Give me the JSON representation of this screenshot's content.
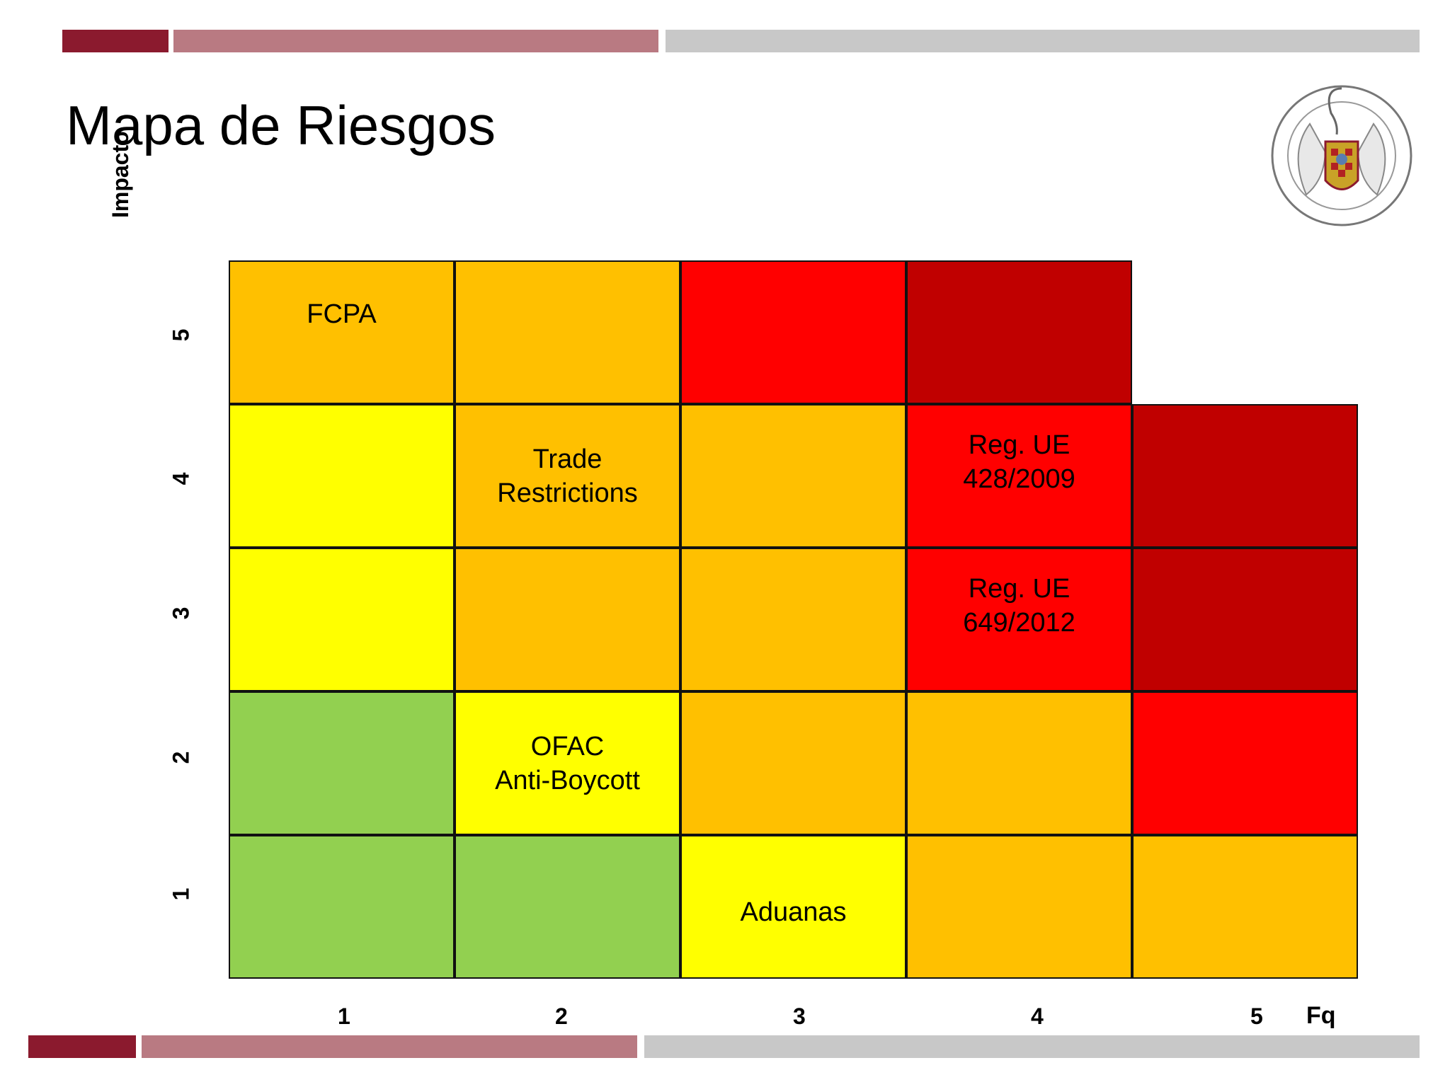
{
  "title": "Mapa de Riesgos",
  "colors": {
    "bar_dark": "#8b1a2e",
    "bar_mid": "#b97a82",
    "bar_grey": "#c8c8c8",
    "green": "#92d050",
    "yellow": "#ffff00",
    "orange": "#ffc000",
    "red": "#ff0000",
    "dark_red": "#c00000"
  },
  "seal": {
    "icon": "university-seal-icon"
  },
  "chart_data": {
    "type": "heatmap",
    "xlabel": "Fq",
    "ylabel": "Impacto",
    "x_ticks": [
      "1",
      "2",
      "3",
      "4",
      "5"
    ],
    "y_ticks": [
      "5",
      "4",
      "3",
      "2",
      "1"
    ],
    "rows": [
      {
        "impact": "5",
        "cells": [
          {
            "color": "orange",
            "label": "FCPA"
          },
          {
            "color": "orange",
            "label": ""
          },
          {
            "color": "red",
            "label": ""
          },
          {
            "color": "dark_red",
            "label": ""
          },
          {
            "color": "none",
            "label": ""
          }
        ]
      },
      {
        "impact": "4",
        "cells": [
          {
            "color": "yellow",
            "label": ""
          },
          {
            "color": "orange",
            "label": "Trade\nRestrictions"
          },
          {
            "color": "orange",
            "label": ""
          },
          {
            "color": "red",
            "label": "Reg. UE\n428/2009"
          },
          {
            "color": "dark_red",
            "label": ""
          }
        ]
      },
      {
        "impact": "3",
        "cells": [
          {
            "color": "yellow",
            "label": ""
          },
          {
            "color": "orange",
            "label": ""
          },
          {
            "color": "orange",
            "label": ""
          },
          {
            "color": "red",
            "label": "Reg. UE\n649/2012"
          },
          {
            "color": "dark_red",
            "label": ""
          }
        ]
      },
      {
        "impact": "2",
        "cells": [
          {
            "color": "green",
            "label": ""
          },
          {
            "color": "yellow",
            "label": "OFAC\nAnti-Boycott"
          },
          {
            "color": "orange",
            "label": ""
          },
          {
            "color": "orange",
            "label": ""
          },
          {
            "color": "red",
            "label": ""
          }
        ]
      },
      {
        "impact": "1",
        "cells": [
          {
            "color": "green",
            "label": ""
          },
          {
            "color": "green",
            "label": ""
          },
          {
            "color": "yellow",
            "label": "Aduanas"
          },
          {
            "color": "orange",
            "label": ""
          },
          {
            "color": "orange",
            "label": ""
          }
        ]
      }
    ]
  }
}
